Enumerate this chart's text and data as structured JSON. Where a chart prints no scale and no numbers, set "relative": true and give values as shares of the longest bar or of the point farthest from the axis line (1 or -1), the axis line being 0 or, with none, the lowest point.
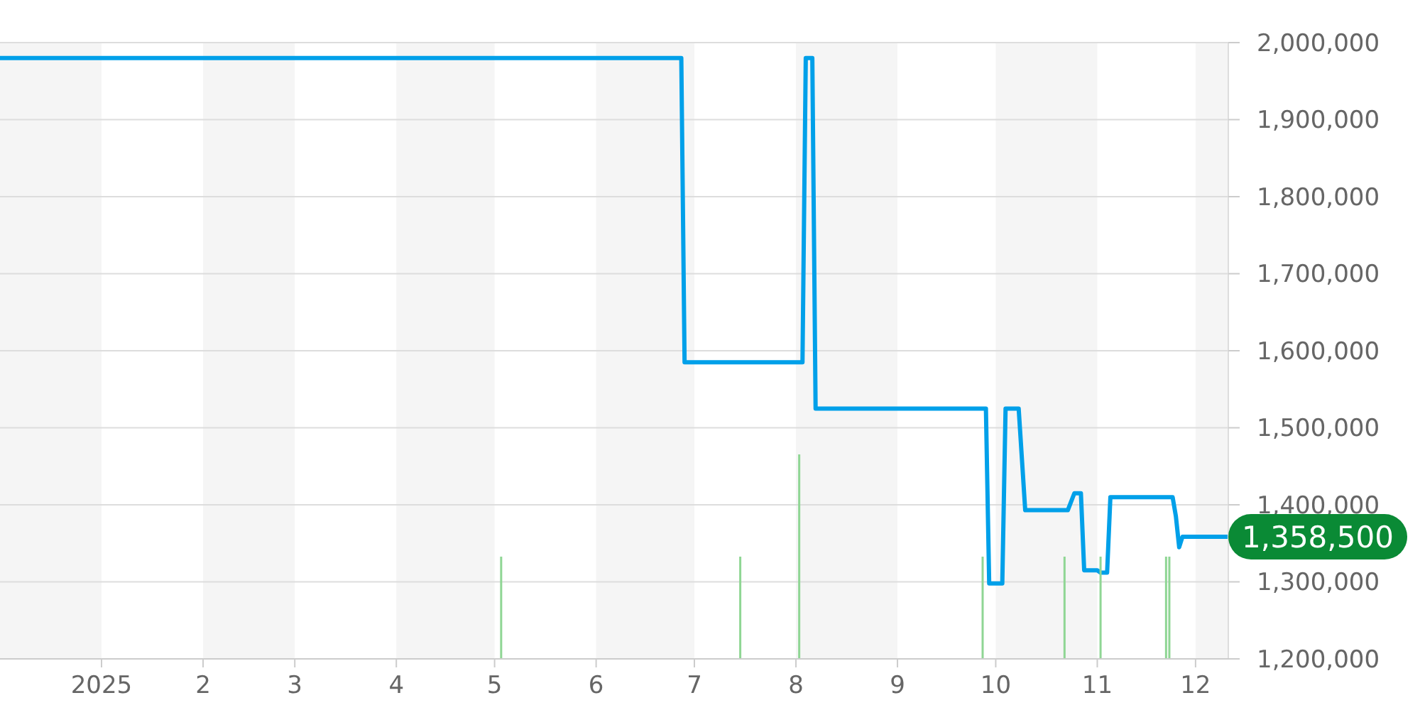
{
  "chart_data": [
    {
      "type": "line",
      "xlim": [
        "2024-12-01",
        "2025-12-11"
      ],
      "xticks": [
        {
          "value": "2025-01-01",
          "label": "2025"
        },
        {
          "value": "2025-02-01",
          "label": "2"
        },
        {
          "value": "2025-03-01",
          "label": "3"
        },
        {
          "value": "2025-04-01",
          "label": "4"
        },
        {
          "value": "2025-05-01",
          "label": "5"
        },
        {
          "value": "2025-06-01",
          "label": "6"
        },
        {
          "value": "2025-07-01",
          "label": "7"
        },
        {
          "value": "2025-08-01",
          "label": "8"
        },
        {
          "value": "2025-09-01",
          "label": "9"
        },
        {
          "value": "2025-10-01",
          "label": "10"
        },
        {
          "value": "2025-11-01",
          "label": "11"
        },
        {
          "value": "2025-12-01",
          "label": "12"
        }
      ],
      "ylim": [
        1200000,
        2000000
      ],
      "yticks": [
        {
          "value": 1200000,
          "label": "1,200,000"
        },
        {
          "value": 1300000,
          "label": "1,300,000"
        },
        {
          "value": 1400000,
          "label": "1,400,000"
        },
        {
          "value": 1500000,
          "label": "1,500,000"
        },
        {
          "value": 1600000,
          "label": "1,600,000"
        },
        {
          "value": 1700000,
          "label": "1,700,000"
        },
        {
          "value": 1800000,
          "label": "1,800,000"
        },
        {
          "value": 1900000,
          "label": "1,900,000"
        },
        {
          "value": 2000000,
          "label": "2,000,000"
        }
      ],
      "grid": "y",
      "marker": "none",
      "line_style": "solid",
      "series": [
        {
          "color": "#00a0e9",
          "x": [
            "2024-12-01",
            "2025-06-27",
            "2025-06-28",
            "2025-08-03",
            "2025-08-04",
            "2025-08-06",
            "2025-08-07",
            "2025-09-28",
            "2025-09-29",
            "2025-10-03",
            "2025-10-04",
            "2025-10-08",
            "2025-10-10",
            "2025-10-23",
            "2025-10-25",
            "2025-10-27",
            "2025-10-28",
            "2025-11-01",
            "2025-11-02",
            "2025-11-04",
            "2025-11-05",
            "2025-11-24",
            "2025-11-25",
            "2025-11-26",
            "2025-11-27",
            "2025-12-11"
          ],
          "values": [
            1980000,
            1980000,
            1585000,
            1585000,
            1980000,
            1980000,
            1525000,
            1525000,
            1298000,
            1298000,
            1525000,
            1525000,
            1393000,
            1393000,
            1415000,
            1415000,
            1315000,
            1315000,
            1312000,
            1312000,
            1410000,
            1410000,
            1385000,
            1345000,
            1358500,
            1358500
          ]
        }
      ],
      "bands": [
        {
          "axis": "x",
          "from": "2024-12-01",
          "to": "2025-01-01",
          "color": "#f5f5f5"
        },
        {
          "axis": "x",
          "from": "2025-02-01",
          "to": "2025-03-01",
          "color": "#f5f5f5"
        },
        {
          "axis": "x",
          "from": "2025-04-01",
          "to": "2025-05-01",
          "color": "#f5f5f5"
        },
        {
          "axis": "x",
          "from": "2025-06-01",
          "to": "2025-07-01",
          "color": "#f5f5f5"
        },
        {
          "axis": "x",
          "from": "2025-08-01",
          "to": "2025-09-01",
          "color": "#f5f5f5"
        },
        {
          "axis": "x",
          "from": "2025-10-01",
          "to": "2025-11-01",
          "color": "#f5f5f5"
        },
        {
          "axis": "x",
          "from": "2025-12-01",
          "to": "2025-12-11",
          "color": "#f5f5f5"
        }
      ],
      "annotations": [
        {
          "text": "1,358,500",
          "x": "2025-12-11",
          "y": 1358500
        }
      ]
    },
    {
      "type": "bar",
      "relative": true,
      "xlim": [
        "2024-12-01",
        "2025-12-11"
      ],
      "x": [
        "2025-05-03",
        "2025-07-15",
        "2025-08-02",
        "2025-09-27",
        "2025-10-22",
        "2025-11-02",
        "2025-11-22",
        "2025-11-23"
      ],
      "values": [
        0.5,
        0.5,
        1,
        0.5,
        0.5,
        0.5,
        0.5,
        0.5
      ],
      "color": "#8fd694"
    }
  ]
}
